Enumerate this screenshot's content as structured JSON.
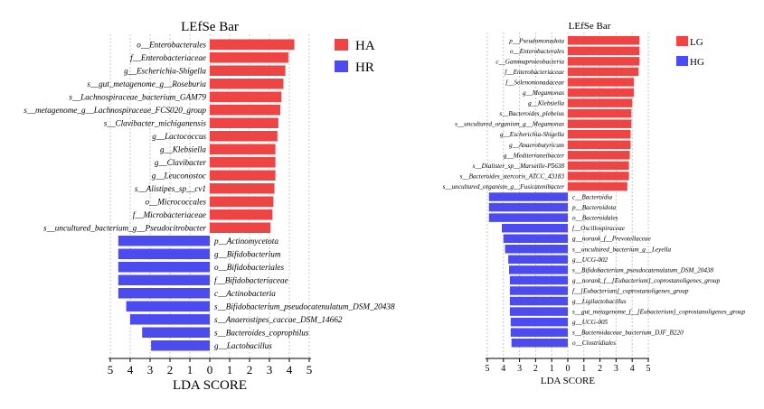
{
  "chart_data": [
    {
      "type": "bar",
      "title": "LEfSe Bar",
      "xlabel": "LDA SCORE",
      "xlim": [
        -5,
        5
      ],
      "tick_labels": [
        "5",
        "4",
        "3",
        "2",
        "1",
        "0",
        "1",
        "2",
        "3",
        "4",
        "5"
      ],
      "colors": {
        "HA": "#ef4444",
        "HR": "#4b4bf0"
      },
      "legend": [
        {
          "name": "HA",
          "color": "#ef4444"
        },
        {
          "name": "HR",
          "color": "#4b4bf0"
        }
      ],
      "bars": [
        {
          "label": "o__Enterobacterales",
          "group": "HA",
          "value": 4.25
        },
        {
          "label": "f__Enterobacteriaceae",
          "group": "HA",
          "value": 3.95
        },
        {
          "label": "g__Escherichia-Shigella",
          "group": "HA",
          "value": 3.8
        },
        {
          "label": "s__gut_metagenome_g__Roseburia",
          "group": "HA",
          "value": 3.7
        },
        {
          "label": "s__Lachnospiraceae_bacterium_GAM79",
          "group": "HA",
          "value": 3.6
        },
        {
          "label": "s__metagenome_g__Lachnospiraceae_FCS020_group",
          "group": "HA",
          "value": 3.55
        },
        {
          "label": "s__Clavibacter_michiganensis",
          "group": "HA",
          "value": 3.45
        },
        {
          "label": "g__Lactococcus",
          "group": "HA",
          "value": 3.4
        },
        {
          "label": "g__Klebsiella",
          "group": "HA",
          "value": 3.3
        },
        {
          "label": "g__Clavibacter",
          "group": "HA",
          "value": 3.3
        },
        {
          "label": "g__Leuconostoc",
          "group": "HA",
          "value": 3.3
        },
        {
          "label": "s__Alistipes_sp__cv1",
          "group": "HA",
          "value": 3.25
        },
        {
          "label": "o__Micrococcales",
          "group": "HA",
          "value": 3.2
        },
        {
          "label": "f__Microbacteriaceae",
          "group": "HA",
          "value": 3.15
        },
        {
          "label": "s__uncultured_bacterium_g__Pseudocitrobacter",
          "group": "HA",
          "value": 3.05
        },
        {
          "label": "p__Actinomycetota",
          "group": "HR",
          "value": 4.6
        },
        {
          "label": "g__Bifidobacterium",
          "group": "HR",
          "value": 4.6
        },
        {
          "label": "o__Bifidobacteriales",
          "group": "HR",
          "value": 4.6
        },
        {
          "label": "f__Bifidobacteriaceae",
          "group": "HR",
          "value": 4.6
        },
        {
          "label": "c__Actinobacteria",
          "group": "HR",
          "value": 4.6
        },
        {
          "label": "s__Bifidobacterium_pseudocatenulatum_DSM_20438",
          "group": "HR",
          "value": 4.2
        },
        {
          "label": "s__Anaerostipes_caccae_DSM_14662",
          "group": "HR",
          "value": 4.0
        },
        {
          "label": "s__Bacteroides_coprophilus",
          "group": "HR",
          "value": 3.4
        },
        {
          "label": "g__Lactobacillus",
          "group": "HR",
          "value": 2.95
        }
      ]
    },
    {
      "type": "bar",
      "title": "LEfSe Bar",
      "xlabel": "LDA SCORE",
      "xlim": [
        -5,
        5
      ],
      "tick_labels": [
        "5",
        "4",
        "3",
        "2",
        "1",
        "0",
        "1",
        "2",
        "3",
        "4",
        "5"
      ],
      "colors": {
        "LG": "#ef4444",
        "HG": "#4b4bf0"
      },
      "legend": [
        {
          "name": "LG",
          "color": "#ef4444"
        },
        {
          "name": "HG",
          "color": "#4b4bf0"
        }
      ],
      "bars": [
        {
          "label": "p__Pseudomonadota",
          "group": "LG",
          "value": 4.45
        },
        {
          "label": "o__Enterobacterales",
          "group": "LG",
          "value": 4.45
        },
        {
          "label": "c__Gammaproteobacteria",
          "group": "LG",
          "value": 4.45
        },
        {
          "label": "f__Enterobacteriaceae",
          "group": "LG",
          "value": 4.4
        },
        {
          "label": "f__Selenomonadaceae",
          "group": "LG",
          "value": 4.1
        },
        {
          "label": "g__Megamonas",
          "group": "LG",
          "value": 4.1
        },
        {
          "label": "g__Klebsiella",
          "group": "LG",
          "value": 4.0
        },
        {
          "label": "s__Bacteroides_plebeius",
          "group": "LG",
          "value": 3.95
        },
        {
          "label": "s__uncultured_organism_g__Megamonas",
          "group": "LG",
          "value": 3.95
        },
        {
          "label": "g__Escherichia-Shigella",
          "group": "LG",
          "value": 3.9
        },
        {
          "label": "g__Anaerobutyricum",
          "group": "LG",
          "value": 3.9
        },
        {
          "label": "g__Mediterraneibacter",
          "group": "LG",
          "value": 3.85
        },
        {
          "label": "s__Dialister_sp__Marseille-P5638",
          "group": "LG",
          "value": 3.8
        },
        {
          "label": "s__Bacteroides_stercoris_ATCC_43183",
          "group": "LG",
          "value": 3.8
        },
        {
          "label": "s__uncultured_organism_g__Fusicatenibacter",
          "group": "LG",
          "value": 3.7
        },
        {
          "label": "c__Bacteroidia",
          "group": "HG",
          "value": 4.9
        },
        {
          "label": "p__Bacteroidota",
          "group": "HG",
          "value": 4.9
        },
        {
          "label": "o__Bacteroidales",
          "group": "HG",
          "value": 4.9
        },
        {
          "label": "f__Oscillospiraceae",
          "group": "HG",
          "value": 4.1
        },
        {
          "label": "g__norank_f__Prevotellaceae",
          "group": "HG",
          "value": 4.0
        },
        {
          "label": "s__uncultured_bacterium_g__Leyella",
          "group": "HG",
          "value": 3.9
        },
        {
          "label": "g__UCG-002",
          "group": "HG",
          "value": 3.7
        },
        {
          "label": "s__Bifidobacterium_pseudocatenulatum_DSM_20438",
          "group": "HG",
          "value": 3.65
        },
        {
          "label": "g__norank_f__[Eubacterium]_coprostanoligenes_group",
          "group": "HG",
          "value": 3.6
        },
        {
          "label": "f__[Eubacterium]_coprostanoligenes_group",
          "group": "HG",
          "value": 3.6
        },
        {
          "label": "g__Ligilactobacillus",
          "group": "HG",
          "value": 3.6
        },
        {
          "label": "s__gut_metagenome_f__[Eubacterium]_coprostanoligenes_group",
          "group": "HG",
          "value": 3.6
        },
        {
          "label": "g__UCG-005",
          "group": "HG",
          "value": 3.55
        },
        {
          "label": "s__Bacteroidaceae_bacterium_DJF_B220",
          "group": "HG",
          "value": 3.55
        },
        {
          "label": "o__Clostridiales",
          "group": "HG",
          "value": 3.5
        }
      ]
    }
  ]
}
